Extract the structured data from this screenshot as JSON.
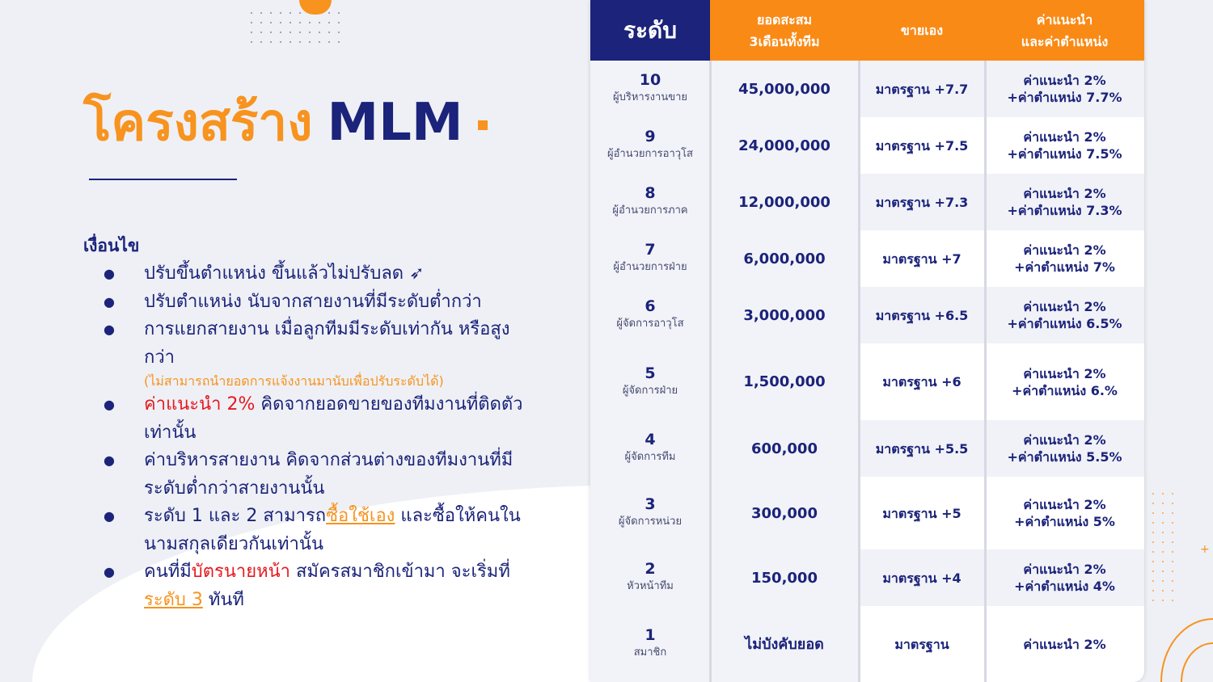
{
  "title": {
    "part1": "โครงสร้าง",
    "part2": "MLM"
  },
  "conditions": {
    "heading": "เงื่อนไข",
    "bullets": [
      [
        {
          "t": "ปรับขึ้นตำแหน่ง ขึ้นแล้วไม่ปรับลด ➶"
        }
      ],
      [
        {
          "t": "ปรับตำแหน่ง นับจากสายงานที่มีระดับต่ำกว่า"
        }
      ],
      [
        {
          "t": "การแยกสายงาน เมื่อลูกทีมมีระดับเท่ากัน หรือสูงกว่า"
        },
        {
          "t": "(ไม่สามารถนำยอดการแจ้งงานมานับเพื่อปรับระดับได้)",
          "c": "note"
        }
      ],
      [
        {
          "t": "ค่าแนะนำ 2%",
          "c": "red"
        },
        {
          "t": " คิดจากยอดขายของทีมงานที่ติดตัวเท่านั้น"
        }
      ],
      [
        {
          "t": "ค่าบริหารสายงาน คิดจากส่วนต่างของทีมงานที่มีระดับต่ำกว่าสายงานนั้น"
        }
      ],
      [
        {
          "t": "ระดับ 1 และ 2 สามารถ"
        },
        {
          "t": "ซื้อใช้เอง",
          "c": "org u"
        },
        {
          "t": " และซื้อให้คนในนามสกุลเดียวกันเท่านั้น"
        }
      ],
      [
        {
          "t": "คนที่มี"
        },
        {
          "t": "บัตรนายหน้า",
          "c": "red"
        },
        {
          "t": " สมัครสมาชิกเข้ามา จะเริ่มที่"
        },
        {
          "t": "ระดับ 3",
          "c": "org u"
        },
        {
          "t": " ทันที"
        }
      ]
    ]
  },
  "table": {
    "headers": [
      "ระดับ",
      "ยอดสะสม\n3เดือนทั้งทีม",
      "ขายเอง",
      "ค่าแนะนำ\nและค่าตำแหน่ง"
    ],
    "rows": [
      {
        "level": "10",
        "name": "ผู้บริหารงานขาย",
        "sales": "45,000,000",
        "self": "มาตรฐาน +7.7",
        "comm": "ค่าแนะนำ 2%\n+ค่าตำแหน่ง 7.7%"
      },
      {
        "level": "9",
        "name": "ผู้อำนวยการอาวุโส",
        "sales": "24,000,000",
        "self": "มาตรฐาน +7.5",
        "comm": "ค่าแนะนำ 2%\n+ค่าตำแหน่ง 7.5%"
      },
      {
        "level": "8",
        "name": "ผู้อำนวยการภาค",
        "sales": "12,000,000",
        "self": "มาตรฐาน +7.3",
        "comm": "ค่าแนะนำ 2%\n+ค่าตำแหน่ง 7.3%"
      },
      {
        "level": "7",
        "name": "ผู้อำนวยการฝ่าย",
        "sales": "6,000,000",
        "self": "มาตรฐาน +7",
        "comm": "ค่าแนะนำ 2%\n+ค่าตำแหน่ง 7%"
      },
      {
        "level": "6",
        "name": "ผู้จัดการอาวุโส",
        "sales": "3,000,000",
        "self": "มาตรฐาน +6.5",
        "comm": "ค่าแนะนำ 2%\n+ค่าตำแหน่ง 6.5%"
      },
      {
        "level": "5",
        "name": "ผู้จัดการฝ่าย",
        "sales": "1,500,000",
        "self": "มาตรฐาน +6",
        "comm": "ค่าแนะนำ 2%\n+ค่าตำแหน่ง 6.%"
      },
      {
        "level": "4",
        "name": "ผู้จัดการทีม",
        "sales": "600,000",
        "self": "มาตรฐาน +5.5",
        "comm": "ค่าแนะนำ 2%\n+ค่าตำแหน่ง 5.5%"
      },
      {
        "level": "3",
        "name": "ผู้จัดการหน่วย",
        "sales": "300,000",
        "self": "มาตรฐาน +5",
        "comm": "ค่าแนะนำ 2%\n+ค่าตำแหน่ง 5%"
      },
      {
        "level": "2",
        "name": "หัวหน้าทีม",
        "sales": "150,000",
        "self": "มาตรฐาน +4",
        "comm": "ค่าแนะนำ 2%\n+ค่าตำแหน่ง 4%"
      },
      {
        "level": "1",
        "name": "สมาชิก",
        "sales": "ไม่บังคับยอด",
        "self": "มาตรฐาน",
        "comm": "ค่าแนะนำ 2%"
      }
    ]
  },
  "colors": {
    "navy": "#1b237a",
    "orange": "#f7931e",
    "red": "#e4191f"
  }
}
